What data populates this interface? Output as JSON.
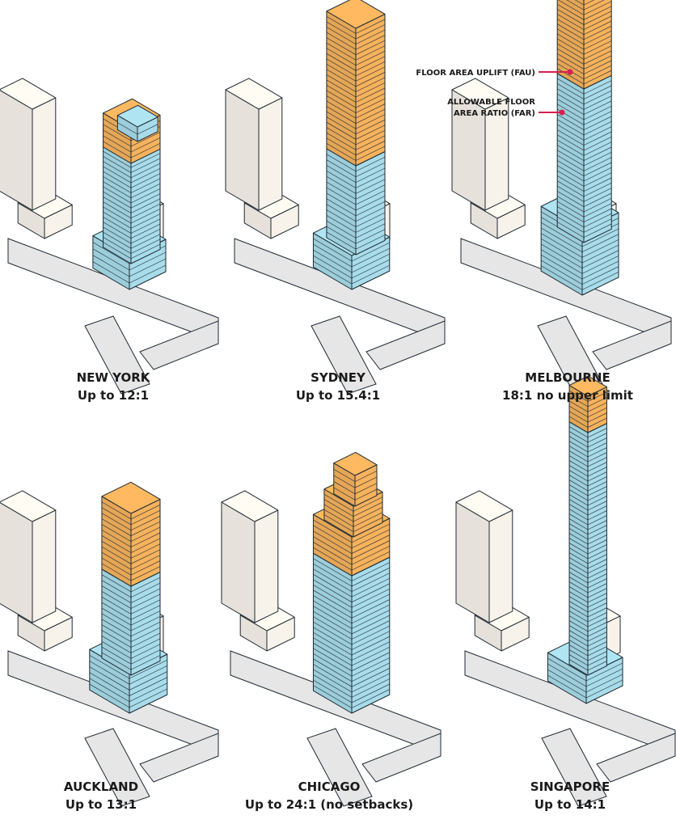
{
  "legend": {
    "fau": "FLOOR AREA UPLIFT (FAU)",
    "far_line1": "ALLOWABLE FLOOR",
    "far_line2": "AREA RATIO (FAR)"
  },
  "colors": {
    "far": "#a8dcea",
    "fau": "#f6b25c",
    "context_building": "#f7f2ea",
    "road": "#e6e6e6",
    "outline": "#1f2a33",
    "leader": "#d6204f"
  },
  "panels": [
    {
      "city": "NEW YORK",
      "ratio": "Up to 12:1"
    },
    {
      "city": "SYDNEY",
      "ratio": "Up to 15.4:1"
    },
    {
      "city": "MELBOURNE",
      "ratio": "18:1 no upper limit"
    },
    {
      "city": "AUCKLAND",
      "ratio": "Up to 13:1"
    },
    {
      "city": "CHICAGO",
      "ratio": "Up to 24:1 (no setbacks)"
    },
    {
      "city": "SINGAPORE",
      "ratio": "Up to 14:1"
    }
  ]
}
